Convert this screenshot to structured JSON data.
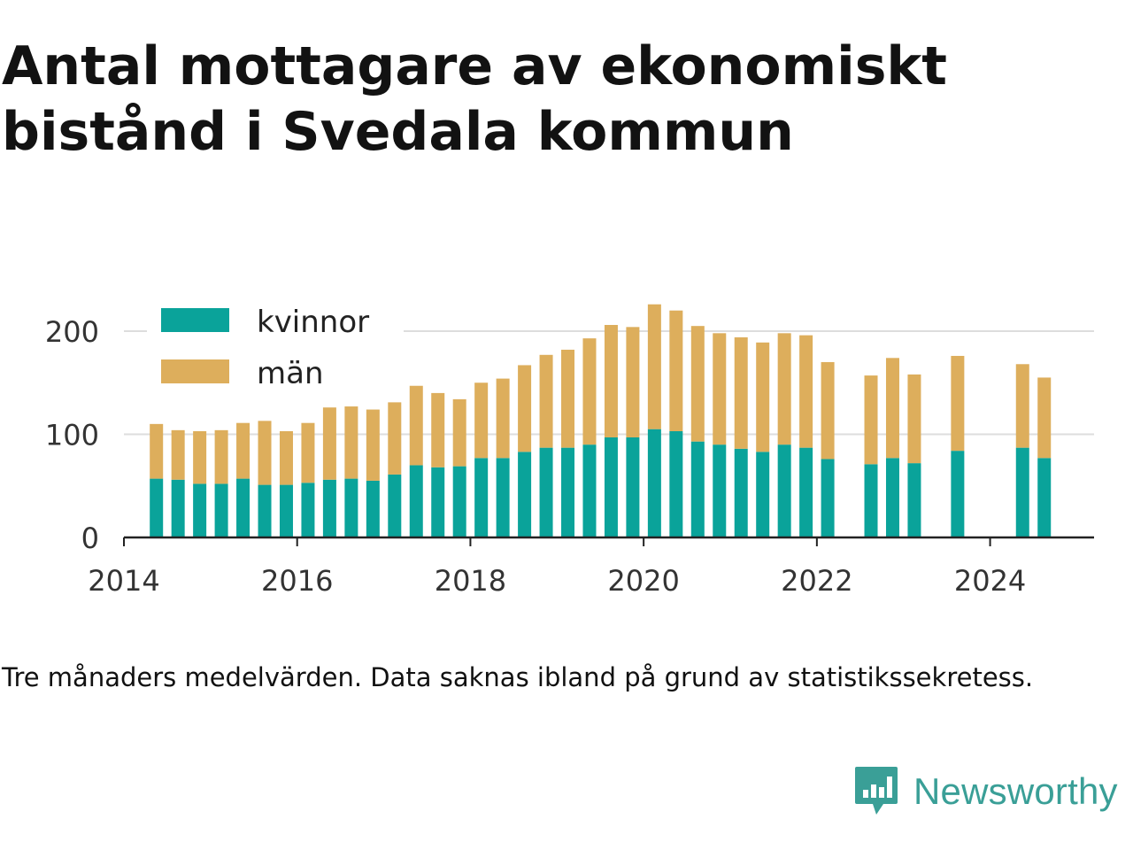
{
  "title": "Antal mottagare av ekonomiskt bistånd i Svedala kommun",
  "footnote": "Tre månaders medelvärden. Data saknas ibland på grund av statistikssekretess.",
  "brand": {
    "name": "Newsworthy",
    "icon": "newsworthy-logo-icon",
    "color": "#3a9f97"
  },
  "chart_data": {
    "type": "bar",
    "stacked": true,
    "x_unit": "quarter",
    "x": [
      "2014-Q2",
      "2014-Q3",
      "2014-Q4",
      "2015-Q1",
      "2015-Q2",
      "2015-Q3",
      "2015-Q4",
      "2016-Q1",
      "2016-Q2",
      "2016-Q3",
      "2016-Q4",
      "2017-Q1",
      "2017-Q2",
      "2017-Q3",
      "2017-Q4",
      "2018-Q1",
      "2018-Q2",
      "2018-Q3",
      "2018-Q4",
      "2019-Q1",
      "2019-Q2",
      "2019-Q3",
      "2019-Q4",
      "2020-Q1",
      "2020-Q2",
      "2020-Q3",
      "2020-Q4",
      "2021-Q1",
      "2021-Q2",
      "2021-Q3",
      "2021-Q4",
      "2022-Q1",
      "2022-Q2",
      "2022-Q3",
      "2022-Q4",
      "2023-Q1",
      "2023-Q2",
      "2023-Q3",
      "2023-Q4",
      "2024-Q1",
      "2024-Q2",
      "2024-Q3"
    ],
    "series": [
      {
        "name": "kvinnor",
        "color": "#0aa39a",
        "values": [
          57,
          56,
          52,
          52,
          57,
          51,
          51,
          53,
          56,
          57,
          55,
          61,
          70,
          68,
          69,
          77,
          77,
          83,
          87,
          87,
          90,
          97,
          97,
          105,
          103,
          93,
          90,
          86,
          83,
          90,
          87,
          76,
          null,
          71,
          77,
          72,
          null,
          84,
          null,
          null,
          87,
          77
        ]
      },
      {
        "name": "män",
        "color": "#ddae5c",
        "values": [
          53,
          48,
          51,
          52,
          54,
          62,
          52,
          58,
          70,
          70,
          69,
          70,
          77,
          72,
          65,
          73,
          77,
          84,
          90,
          95,
          103,
          109,
          107,
          121,
          117,
          112,
          108,
          108,
          106,
          108,
          109,
          94,
          null,
          86,
          97,
          86,
          null,
          92,
          null,
          null,
          81,
          78
        ]
      }
    ],
    "xticks": [
      "2014",
      "2016",
      "2018",
      "2020",
      "2022",
      "2024"
    ],
    "xlim": [
      2014,
      2025.2
    ],
    "yticks": [
      "0",
      "100",
      "200"
    ],
    "ylim": [
      0,
      230
    ],
    "grid": "horizontal",
    "legend": "top-left"
  }
}
